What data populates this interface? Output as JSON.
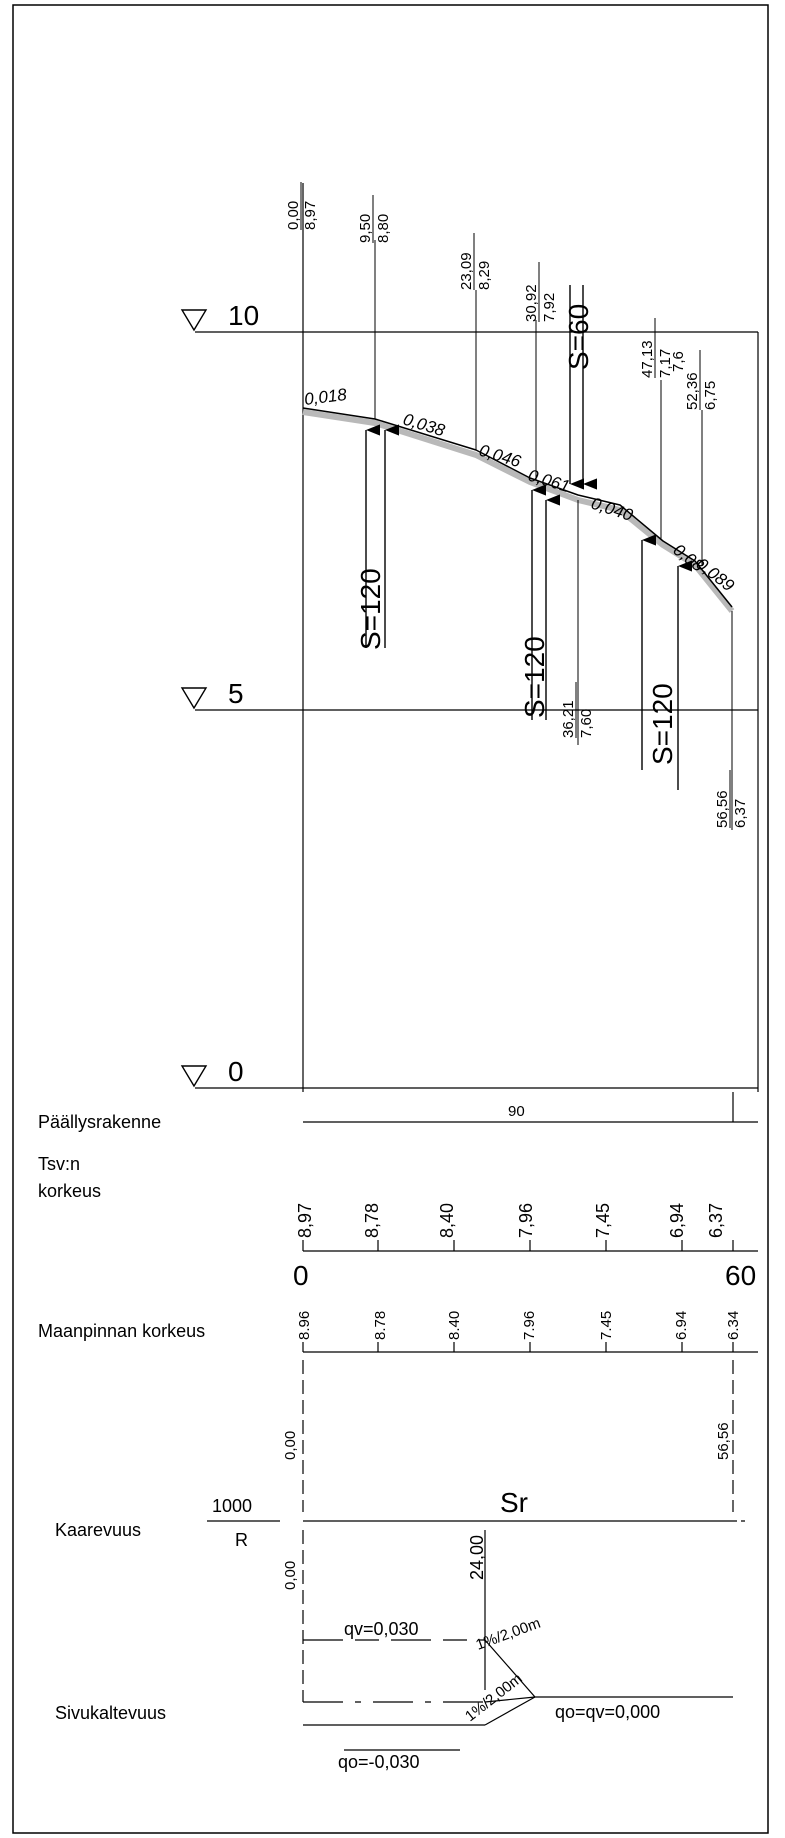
{
  "levels": [
    {
      "label": "10",
      "value": 10
    },
    {
      "label": "5",
      "value": 5
    },
    {
      "label": "0",
      "value": 0
    }
  ],
  "profile_points": [
    {
      "station": "0,00",
      "height": "8,97"
    },
    {
      "station": "9,50",
      "height": "8,80"
    },
    {
      "station": "23,09",
      "height": "8,29"
    },
    {
      "station": "30,92",
      "height": "7,92"
    },
    {
      "station": "36,21",
      "height": "7,60"
    },
    {
      "station": "47,13",
      "height": "7,17"
    },
    {
      "station": "52,36",
      "height": "6,75"
    },
    {
      "station": "56,56",
      "height": "6,37"
    }
  ],
  "extra_label": "7,6",
  "slopes": [
    "0,018",
    "0,038",
    "0,046",
    "0,061",
    "0,040",
    "0,08",
    "0,089"
  ],
  "sight_labels": [
    "S=120",
    "S=60",
    "S=120",
    "S=120"
  ],
  "rows": {
    "structure": {
      "label": "Päällysrakenne",
      "value": "90"
    },
    "tsv": {
      "label_line1": "Tsv:n",
      "label_line2": "korkeus",
      "values": [
        "8,97",
        "8,78",
        "8,40",
        "7,96",
        "7,45",
        "6,94",
        "6,37"
      ],
      "scale_start": "0",
      "scale_end": "60"
    },
    "ground": {
      "label": "Maanpinnan korkeus",
      "values": [
        "8.96",
        "8.78",
        "8.40",
        "7.96",
        "7.45",
        "6.94",
        "6.34"
      ]
    },
    "curvature": {
      "label": "Kaarevuus",
      "numerator": "1000",
      "denominator": "R",
      "start": "0,00",
      "end": "56,56",
      "type_label": "Sr"
    },
    "crossfall": {
      "label": "Sivukaltevuus",
      "start": "0,00",
      "break_station": "24,00",
      "qv": "qv=0,030",
      "qo": "qo=-0,030",
      "qo_qv": "qo=qv=0,000",
      "transition_upper": "1%/2,00m",
      "transition_lower": "1%/2,00m"
    }
  }
}
